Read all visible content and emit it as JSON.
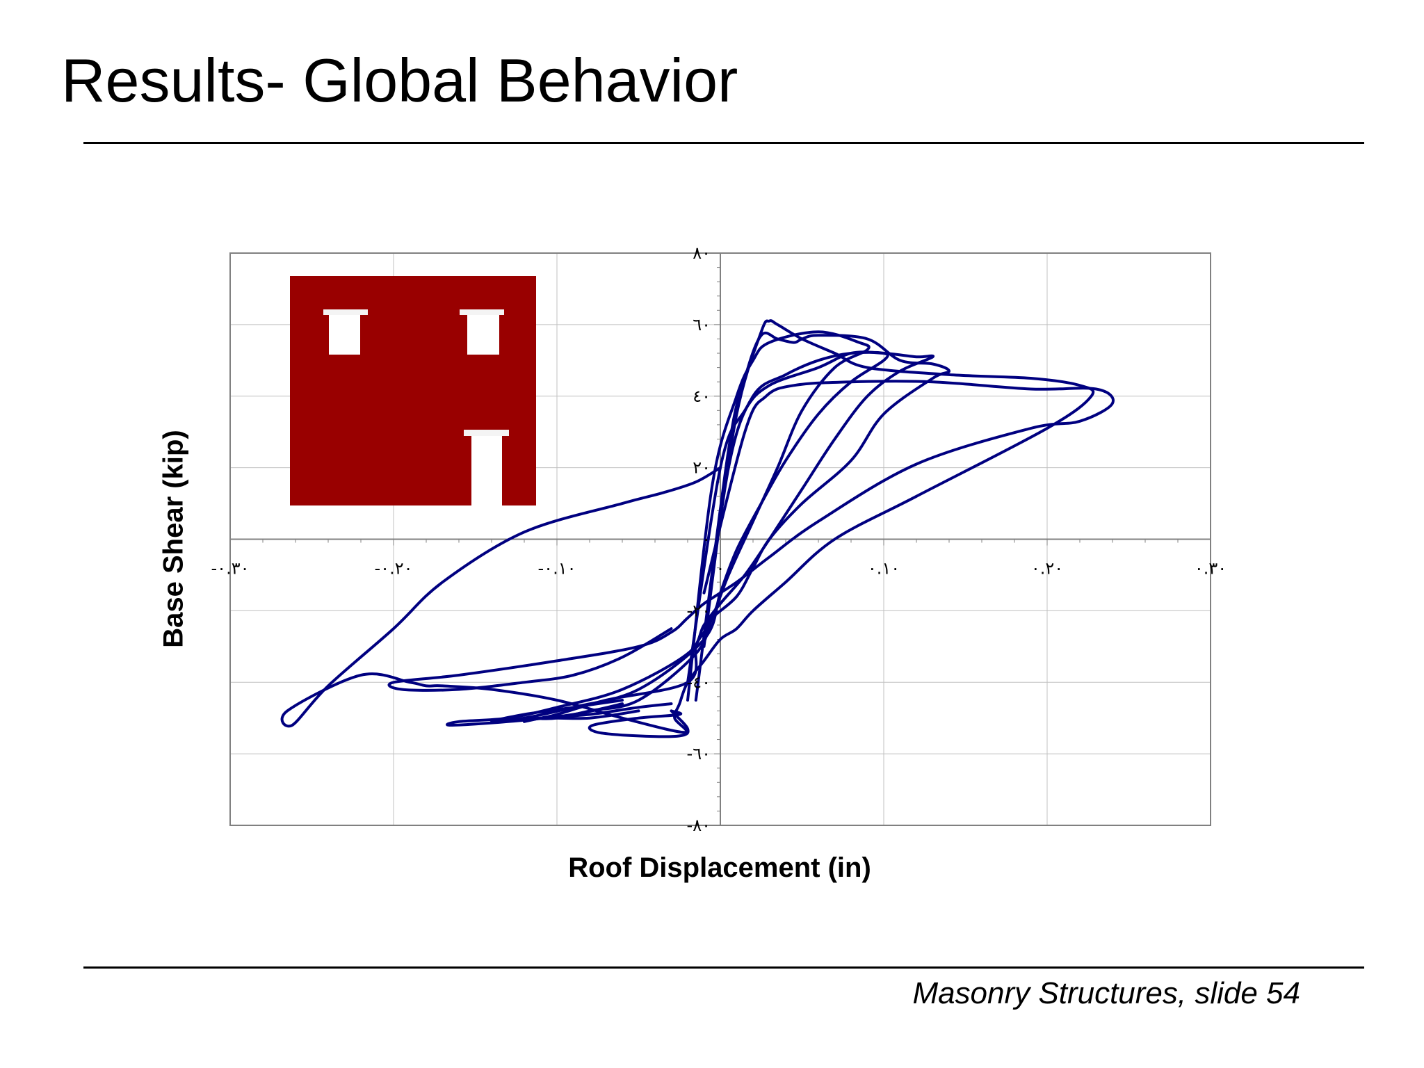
{
  "slide": {
    "title": "Results- Global Behavior",
    "footer": "Masonry Structures, slide 54"
  },
  "colors": {
    "series": "#000080",
    "building": "#990000",
    "grid": "#c0c0c0",
    "axis": "#808080"
  },
  "chart_data": {
    "type": "line",
    "xlabel": "Roof Displacement (in)",
    "ylabel": "Base Shear (kip)",
    "xlim": [
      -0.3,
      0.3
    ],
    "ylim": [
      -80,
      80
    ],
    "x_ticks": [
      -0.3,
      -0.2,
      -0.1,
      0,
      0.1,
      0.2,
      0.3
    ],
    "x_tick_labels": [
      "-٠.٣٠",
      "-٠.٢٠",
      "-٠.١٠",
      "٠",
      "٠.١٠",
      "٠.٢٠",
      "٠.٣٠"
    ],
    "y_ticks": [
      -80,
      -60,
      -40,
      -20,
      0,
      20,
      40,
      60,
      80
    ],
    "y_tick_labels": [
      "-٨٠",
      "-٦٠",
      "-٤٠",
      "-٢٠",
      "٠",
      "٢٠",
      "٤٠",
      "٦٠",
      "٨٠"
    ],
    "grid": true,
    "legend": "none",
    "inset": "building elevation (shaded wall with two windows and a door)",
    "series": [
      {
        "x": [
          -0.005,
          0.01,
          0.025,
          0.03,
          0.035,
          0.05,
          0.07,
          0.09,
          0.14,
          0.19,
          0.22,
          0.227,
          0.2,
          0.12,
          0.07,
          0.04,
          0.02,
          0.01,
          0.0,
          -0.01,
          -0.02,
          -0.025,
          -0.028,
          -0.022,
          -0.06,
          -0.1,
          -0.14,
          -0.17,
          -0.18,
          -0.19,
          -0.22,
          -0.265,
          -0.262,
          -0.24,
          -0.2,
          -0.17,
          -0.12,
          -0.06,
          -0.035,
          -0.015,
          0.0
        ],
        "y": [
          -10,
          35,
          58,
          61,
          60,
          56,
          52,
          48,
          46,
          45,
          43,
          40,
          31,
          12,
          0,
          -12,
          -20,
          -25,
          -28,
          -34,
          -40,
          -46,
          -50,
          -54,
          -50,
          -45,
          -42,
          -41,
          -41,
          -40,
          -38,
          -48,
          -52,
          -41,
          -25,
          -12,
          2,
          10,
          13,
          16,
          20
        ]
      },
      {
        "x": [
          -0.01,
          0.015,
          0.028,
          0.045,
          0.08,
          0.13,
          0.19,
          0.23,
          0.24,
          0.22,
          0.19,
          0.12,
          0.06,
          0.03,
          0.01,
          -0.01,
          -0.02,
          -0.03,
          -0.05,
          -0.1,
          -0.16,
          -0.2,
          -0.195,
          -0.16,
          -0.12,
          -0.09,
          -0.06,
          -0.03
        ],
        "y": [
          -15,
          30,
          40,
          43,
          44,
          44,
          42,
          42,
          38,
          33,
          31,
          21,
          5,
          -5,
          -12,
          -18,
          -22,
          -26,
          -30,
          -34,
          -38,
          -40,
          -42,
          -42,
          -40,
          -38,
          -33,
          -25
        ]
      },
      {
        "x": [
          -0.015,
          0.005,
          0.015,
          0.025,
          0.035,
          0.045,
          0.05,
          0.06,
          0.09,
          0.11,
          0.13,
          0.14,
          0.13,
          0.1,
          0.08,
          0.05,
          0.03,
          0.02,
          0.01,
          -0.005,
          -0.01,
          -0.015,
          -0.02,
          -0.07,
          -0.1,
          -0.11,
          -0.12,
          -0.11,
          -0.08,
          -0.05
        ],
        "y": [
          -45,
          25,
          45,
          57,
          56,
          55,
          56,
          57,
          56,
          50,
          49,
          47,
          45,
          35,
          22,
          10,
          0,
          -8,
          -16,
          -22,
          -26,
          -30,
          -40,
          -45,
          -49,
          -50,
          -51,
          -50,
          -50,
          -48
        ]
      },
      {
        "x": [
          -0.02,
          0.0,
          0.015,
          0.03,
          0.06,
          0.08,
          0.1,
          0.12,
          0.13,
          0.11,
          0.09,
          0.07,
          0.05,
          0.03,
          0.015,
          0.0,
          -0.01,
          -0.02,
          -0.06,
          -0.1,
          -0.13,
          -0.16,
          -0.165,
          -0.13,
          -0.09,
          -0.06
        ],
        "y": [
          -40,
          20,
          36,
          43,
          48,
          52,
          52,
          51,
          51,
          47,
          40,
          28,
          14,
          0,
          -10,
          -18,
          -24,
          -32,
          -42,
          -47,
          -50,
          -51,
          -52,
          -51,
          -49,
          -46
        ]
      },
      {
        "x": [
          -0.01,
          0.005,
          0.02,
          0.04,
          0.06,
          0.08,
          0.1,
          0.1,
          0.08,
          0.06,
          0.04,
          0.025,
          0.01,
          0.0,
          -0.01,
          -0.05,
          -0.09,
          -0.12,
          -0.14,
          -0.12,
          -0.09,
          -0.06
        ],
        "y": [
          -30,
          20,
          40,
          46,
          50,
          52,
          52,
          50,
          44,
          35,
          22,
          10,
          -3,
          -15,
          -28,
          -42,
          -47,
          -50,
          -51,
          -49,
          -47,
          -45
        ]
      },
      {
        "x": [
          -0.02,
          -0.005,
          0.01,
          0.02,
          0.03,
          0.06,
          0.085,
          0.09,
          0.07,
          0.05,
          0.035,
          0.02,
          0.005,
          -0.005,
          -0.015,
          -0.05,
          -0.08,
          -0.1,
          -0.11,
          -0.08,
          -0.05,
          -0.03
        ],
        "y": [
          -45,
          15,
          40,
          50,
          55,
          58,
          55,
          53,
          48,
          36,
          20,
          5,
          -10,
          -22,
          -32,
          -45,
          -48,
          -50,
          -50,
          -49,
          -47,
          -46
        ]
      },
      {
        "x": [
          -0.03,
          -0.02,
          -0.025,
          -0.05,
          -0.075,
          -0.078,
          -0.05,
          -0.025,
          -0.03
        ],
        "y": [
          -48,
          -53,
          -55,
          -55,
          -54,
          -52,
          -50,
          -49,
          -48
        ]
      }
    ]
  }
}
